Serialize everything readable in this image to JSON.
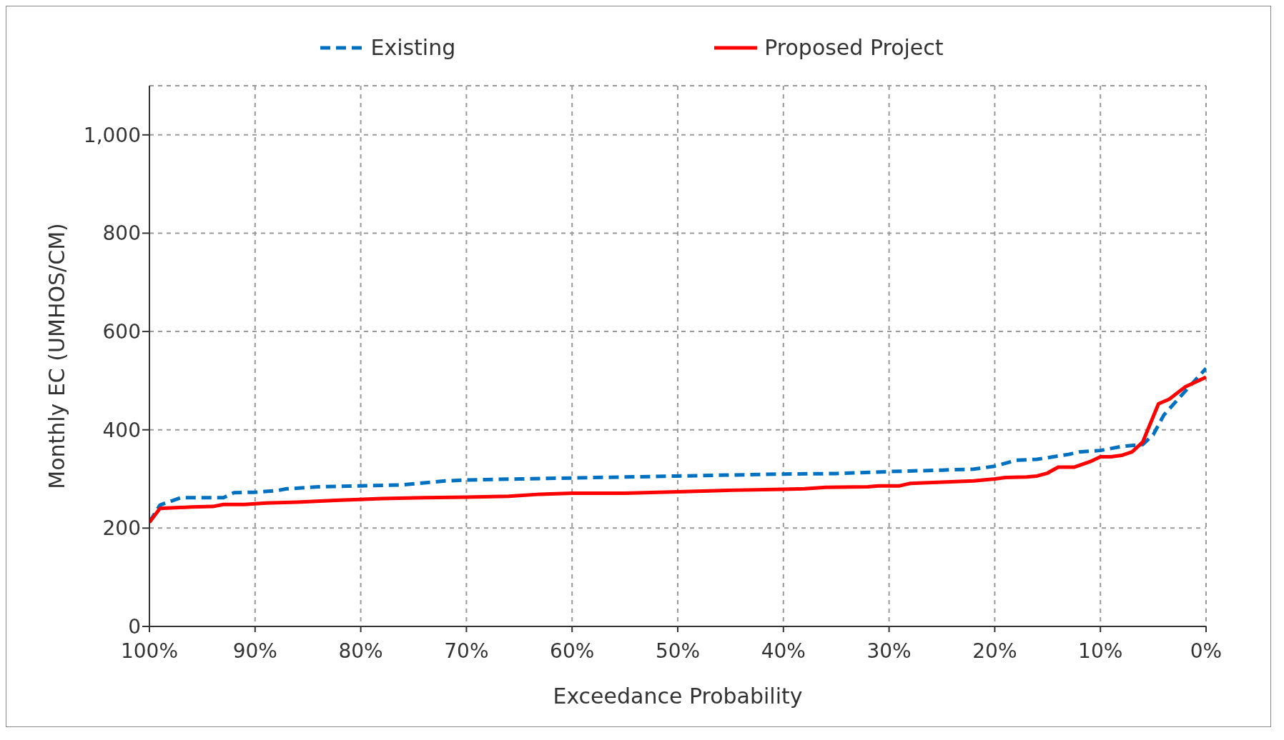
{
  "chart_data": {
    "type": "line",
    "xlabel": "Exceedance Probability",
    "ylabel": "Monthly EC (UMHOS/CM)",
    "xlim": [
      100,
      0
    ],
    "xticks": [
      {
        "value": 100,
        "label": "100%"
      },
      {
        "value": 90,
        "label": "90%"
      },
      {
        "value": 80,
        "label": "80%"
      },
      {
        "value": 70,
        "label": "70%"
      },
      {
        "value": 60,
        "label": "60%"
      },
      {
        "value": 50,
        "label": "50%"
      },
      {
        "value": 40,
        "label": "40%"
      },
      {
        "value": 30,
        "label": "30%"
      },
      {
        "value": 20,
        "label": "20%"
      },
      {
        "value": 10,
        "label": "10%"
      },
      {
        "value": 0,
        "label": "0%"
      }
    ],
    "ylim": [
      0,
      1100
    ],
    "yticks": [
      0,
      200,
      400,
      600,
      800,
      {
        "value": 1000,
        "label": "1,000"
      }
    ],
    "grid": true,
    "legend": "top",
    "marker": "none",
    "series": [
      {
        "name": "Existing",
        "color": "#0070c0",
        "line_style": "dashed",
        "x": [
          100,
          99,
          97,
          93,
          92,
          90,
          88,
          87,
          84,
          80,
          76,
          72,
          70,
          65,
          60,
          55,
          50,
          45,
          40,
          35,
          30,
          25,
          22,
          20,
          18,
          16,
          13,
          12,
          10,
          8,
          6,
          5,
          4,
          2,
          0
        ],
        "values": [
          212,
          247,
          262,
          262,
          272,
          273,
          276,
          280,
          284,
          286,
          288,
          296,
          298,
          300,
          302,
          304,
          306,
          308,
          310,
          311,
          315,
          318,
          320,
          326,
          338,
          340,
          350,
          355,
          358,
          366,
          370,
          390,
          430,
          478,
          525
        ]
      },
      {
        "name": "Proposed Project",
        "color": "#ff0000",
        "line_style": "solid",
        "x": [
          100,
          99,
          96,
          94,
          93,
          91,
          89,
          86,
          82,
          78,
          74,
          70,
          66,
          63,
          60,
          55,
          50,
          45,
          40,
          38,
          36,
          32,
          31,
          29,
          28,
          22,
          20,
          19,
          17,
          16,
          15,
          14,
          12.5,
          11,
          10,
          9,
          8,
          7,
          6,
          4.5,
          3.5,
          2,
          0
        ],
        "values": [
          212,
          240,
          243,
          244,
          248,
          248,
          251,
          253,
          257,
          260,
          262,
          263,
          265,
          269,
          271,
          271,
          274,
          277,
          279,
          280,
          283,
          284,
          286,
          286,
          291,
          296,
          300,
          303,
          304,
          306,
          312,
          324,
          324,
          335,
          345,
          345,
          348,
          355,
          375,
          453,
          462,
          487,
          507
        ]
      }
    ]
  }
}
